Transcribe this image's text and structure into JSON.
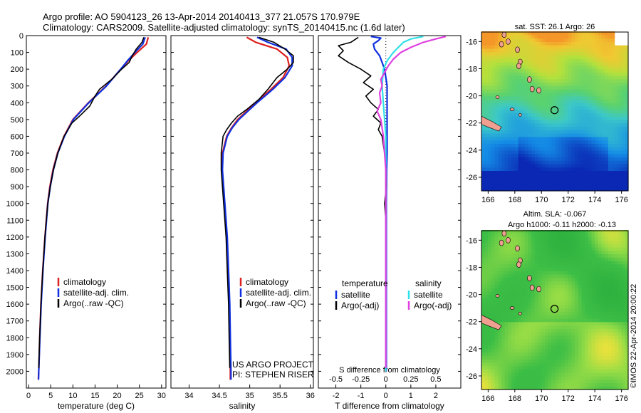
{
  "header": {
    "line1": "Argo profile: AO 5904123_26 13-Apr-2014 20140413_377 21.057S 170.979E",
    "line2": "Climatology: CARS2009. Satellite-adjusted climatology: synTS_20140415.nc (1.6d later)"
  },
  "credit": {
    "project": "US ARGO PROJECT",
    "pi": "PI: STEPHEN RISER",
    "watermark": "©IMOS 22-Apr-2014 20:00:22"
  },
  "colors": {
    "climatology": "#dd2020",
    "satellite": "#1030e0",
    "argo": "#000000",
    "sal_satellite": "#30e0e8",
    "sal_argo": "#e040e0"
  },
  "chart_data": [
    {
      "type": "line",
      "id": "temperature",
      "xlabel": "temperature (deg C)",
      "ylabel": "",
      "xlim": [
        -0.5,
        31
      ],
      "ylim": [
        2100,
        0
      ],
      "xticks": [
        0,
        5,
        10,
        15,
        20,
        25,
        30
      ],
      "yticks": [
        0,
        100,
        200,
        300,
        400,
        500,
        600,
        700,
        800,
        900,
        1000,
        1100,
        1200,
        1300,
        1400,
        1500,
        1600,
        1700,
        1800,
        1900,
        2000
      ],
      "legend": {
        "placement": "lower-middle",
        "entries": [
          "climatology",
          "satellite-adj. clim.",
          "Argo(..raw -QC)"
        ]
      },
      "series": [
        {
          "name": "climatology",
          "color_key": "climatology",
          "depth": [
            10,
            50,
            100,
            150,
            200,
            300,
            400,
            500,
            600,
            700,
            800,
            900,
            1000,
            1200,
            1400,
            1600,
            1800,
            2000,
            2050
          ],
          "values": [
            27.0,
            26.6,
            24.5,
            22.5,
            20.8,
            17.5,
            13.5,
            10.0,
            8.0,
            6.5,
            5.5,
            4.8,
            4.3,
            3.7,
            3.2,
            2.8,
            2.5,
            2.3,
            2.2
          ]
        },
        {
          "name": "satellite-adj. clim.",
          "color_key": "satellite",
          "depth": [
            10,
            50,
            100,
            150,
            200,
            300,
            400,
            500,
            600,
            700,
            800,
            900,
            1000,
            1200,
            1400,
            1600,
            1800,
            2000,
            2050
          ],
          "values": [
            26.3,
            25.8,
            24.0,
            22.3,
            20.8,
            17.6,
            13.6,
            10.1,
            8.1,
            6.6,
            5.6,
            4.9,
            4.35,
            3.75,
            3.25,
            2.85,
            2.55,
            2.3,
            2.25
          ]
        },
        {
          "name": "Argo(..raw -QC)",
          "color_key": "argo",
          "depth": [
            10,
            40,
            80,
            120,
            160,
            200,
            260,
            320,
            360,
            420,
            480,
            520,
            600,
            700,
            800,
            900,
            1000,
            1100,
            1200,
            1400,
            1600,
            1800,
            1980
          ],
          "values": [
            26.0,
            25.6,
            24.3,
            23.4,
            22.7,
            21.0,
            18.8,
            16.0,
            15.0,
            13.8,
            11.5,
            9.8,
            8.0,
            6.6,
            5.6,
            4.9,
            4.35,
            4.0,
            3.7,
            3.2,
            2.8,
            2.5,
            2.3
          ]
        }
      ]
    },
    {
      "type": "line",
      "id": "salinity",
      "xlabel": "salinity",
      "ylabel": "",
      "xlim": [
        33.7,
        36.05
      ],
      "ylim": [
        2100,
        0
      ],
      "xticks": [
        34,
        34.5,
        35,
        35.5,
        36
      ],
      "legend": {
        "placement": "lower-middle",
        "entries": [
          "climatology",
          "satellite-adj. clim.",
          "Argo(..raw -QC)"
        ]
      },
      "series": [
        {
          "name": "climatology",
          "color_key": "climatology",
          "depth": [
            10,
            40,
            80,
            130,
            180,
            250,
            320,
            400,
            450,
            500,
            550,
            600,
            700,
            800,
            900,
            1000,
            1100,
            1200,
            1400,
            1600,
            1800,
            2000,
            2050
          ],
          "values": [
            34.95,
            35.1,
            35.45,
            35.62,
            35.65,
            35.55,
            35.35,
            35.1,
            34.95,
            34.8,
            34.7,
            34.62,
            34.55,
            34.54,
            34.56,
            34.58,
            34.6,
            34.62,
            34.64,
            34.66,
            34.67,
            34.68,
            34.68
          ]
        },
        {
          "name": "satellite-adj. clim.",
          "color_key": "satellite",
          "depth": [
            10,
            40,
            80,
            130,
            180,
            250,
            320,
            400,
            450,
            500,
            550,
            600,
            700,
            800,
            900,
            1000,
            1100,
            1200,
            1400,
            1600,
            1800,
            2000,
            2050
          ],
          "values": [
            35.12,
            35.3,
            35.6,
            35.7,
            35.7,
            35.58,
            35.38,
            35.12,
            34.97,
            34.82,
            34.71,
            34.63,
            34.56,
            34.55,
            34.57,
            34.59,
            34.61,
            34.63,
            34.65,
            34.67,
            34.68,
            34.69,
            34.69
          ]
        },
        {
          "name": "Argo(..raw -QC)",
          "color_key": "argo",
          "depth": [
            10,
            40,
            80,
            120,
            160,
            200,
            250,
            320,
            380,
            440,
            480,
            520,
            560,
            600,
            700,
            800,
            900,
            1000,
            1100,
            1200,
            1400,
            1600,
            1800,
            1980
          ],
          "values": [
            35.15,
            35.4,
            35.58,
            35.72,
            35.72,
            35.62,
            35.45,
            35.3,
            35.15,
            34.95,
            34.8,
            34.7,
            34.62,
            34.56,
            34.53,
            34.53,
            34.55,
            34.57,
            34.59,
            34.61,
            34.63,
            34.65,
            34.66,
            34.67
          ]
        }
      ]
    },
    {
      "type": "line",
      "id": "difference",
      "xlabel": "T difference from climatology",
      "x2label": "S difference from climatology",
      "xlim": [
        -2.7,
        3.0
      ],
      "ylim": [
        2100,
        0
      ],
      "xticks": [
        -2,
        -1,
        0,
        1,
        2
      ],
      "x2ticks_labels": [
        "-0.5",
        "-0.25",
        "0",
        "0.25",
        "0.5"
      ],
      "x2ticks_at": [
        -2,
        -1,
        0,
        1,
        2
      ],
      "legend": {
        "placement": "middle",
        "groups": [
          "temperature",
          "salinity"
        ],
        "entries": [
          "satellite",
          "Argo(-adj)",
          "satellite",
          "Argo(-adj)"
        ]
      },
      "series": [
        {
          "name": "satellite",
          "group": "temperature",
          "color_key": "satellite",
          "depth": [
            5,
            15,
            30,
            50,
            80,
            120,
            200,
            300,
            400,
            500,
            600,
            700,
            800,
            1000,
            1200,
            1400,
            1600,
            1800,
            2000
          ],
          "values": [
            -0.6,
            -0.2,
            -0.3,
            -0.5,
            -0.45,
            -0.25,
            -0.05,
            0.05,
            0.05,
            0.05,
            0.05,
            0.05,
            0.03,
            0.02,
            0.02,
            0.02,
            0.02,
            0.02,
            0.02
          ]
        },
        {
          "name": "Argo(-adj)",
          "group": "temperature",
          "color_key": "argo",
          "depth": [
            10,
            40,
            60,
            90,
            120,
            160,
            200,
            240,
            280,
            320,
            360,
            400,
            440,
            480,
            520,
            560,
            600,
            650,
            700,
            800,
            900,
            1000,
            1100,
            1200,
            1400,
            1600,
            1800,
            1980
          ],
          "values": [
            -1.1,
            -1.4,
            -1.9,
            -1.7,
            -1.9,
            -1.5,
            -1.0,
            -0.6,
            -0.9,
            -0.5,
            -0.8,
            -0.6,
            -0.3,
            -0.5,
            -0.2,
            -0.3,
            -0.15,
            -0.1,
            -0.05,
            0.0,
            0.02,
            -0.05,
            0.0,
            0.0,
            0.0,
            0.0,
            0.0,
            0.0
          ]
        },
        {
          "name": "satellite",
          "group": "salinity",
          "color_key": "sal_satellite",
          "depth": [
            5,
            20,
            40,
            70,
            100,
            150,
            200,
            300,
            400,
            500,
            600,
            700,
            800,
            1000,
            1200,
            1400,
            1600,
            1800,
            2000
          ],
          "values": [
            1.5,
            1.0,
            0.7,
            0.5,
            0.3,
            0.05,
            -0.1,
            -0.15,
            -0.1,
            -0.05,
            0.0,
            0.0,
            0.0,
            0.0,
            0.0,
            0.0,
            0.0,
            0.0,
            0.0
          ]
        },
        {
          "name": "Argo(-adj)",
          "group": "salinity",
          "color_key": "sal_argo",
          "depth": [
            5,
            20,
            40,
            70,
            100,
            140,
            180,
            220,
            260,
            300,
            340,
            400,
            450,
            500,
            550,
            600,
            700,
            800,
            1000,
            1200,
            1400,
            1600,
            1800,
            1980
          ],
          "values": [
            2.4,
            2.0,
            1.5,
            1.0,
            0.6,
            0.3,
            0.1,
            -0.05,
            -0.2,
            -0.15,
            -0.25,
            -0.2,
            -0.35,
            -0.2,
            -0.15,
            -0.1,
            -0.05,
            0.0,
            0.0,
            0.0,
            0.0,
            0.0,
            0.0,
            0.0
          ]
        }
      ]
    },
    {
      "type": "heatmap",
      "id": "sst_map",
      "title": "sat. SST: 26.1 Argo: 26",
      "xlim": [
        165.5,
        176.5
      ],
      "ylim": [
        -27,
        -15.3
      ],
      "xticks": [
        166,
        168,
        170,
        172,
        174,
        176
      ],
      "yticks": [
        -16,
        -18,
        -20,
        -22,
        -24,
        -26
      ],
      "marker": {
        "lon": 170.979,
        "lat": -21.057
      }
    },
    {
      "type": "heatmap",
      "id": "sla_map",
      "title": "Altim. SLA: -0.067",
      "subtitle": "Argo h1000: -0.11 h2000: -0.13",
      "xlim": [
        165.5,
        176.5
      ],
      "ylim": [
        -27,
        -15.3
      ],
      "xticks": [
        166,
        168,
        170,
        172,
        174,
        176
      ],
      "yticks": [
        -16,
        -18,
        -20,
        -22,
        -24,
        -26
      ],
      "marker": {
        "lon": 170.979,
        "lat": -21.057
      }
    }
  ]
}
